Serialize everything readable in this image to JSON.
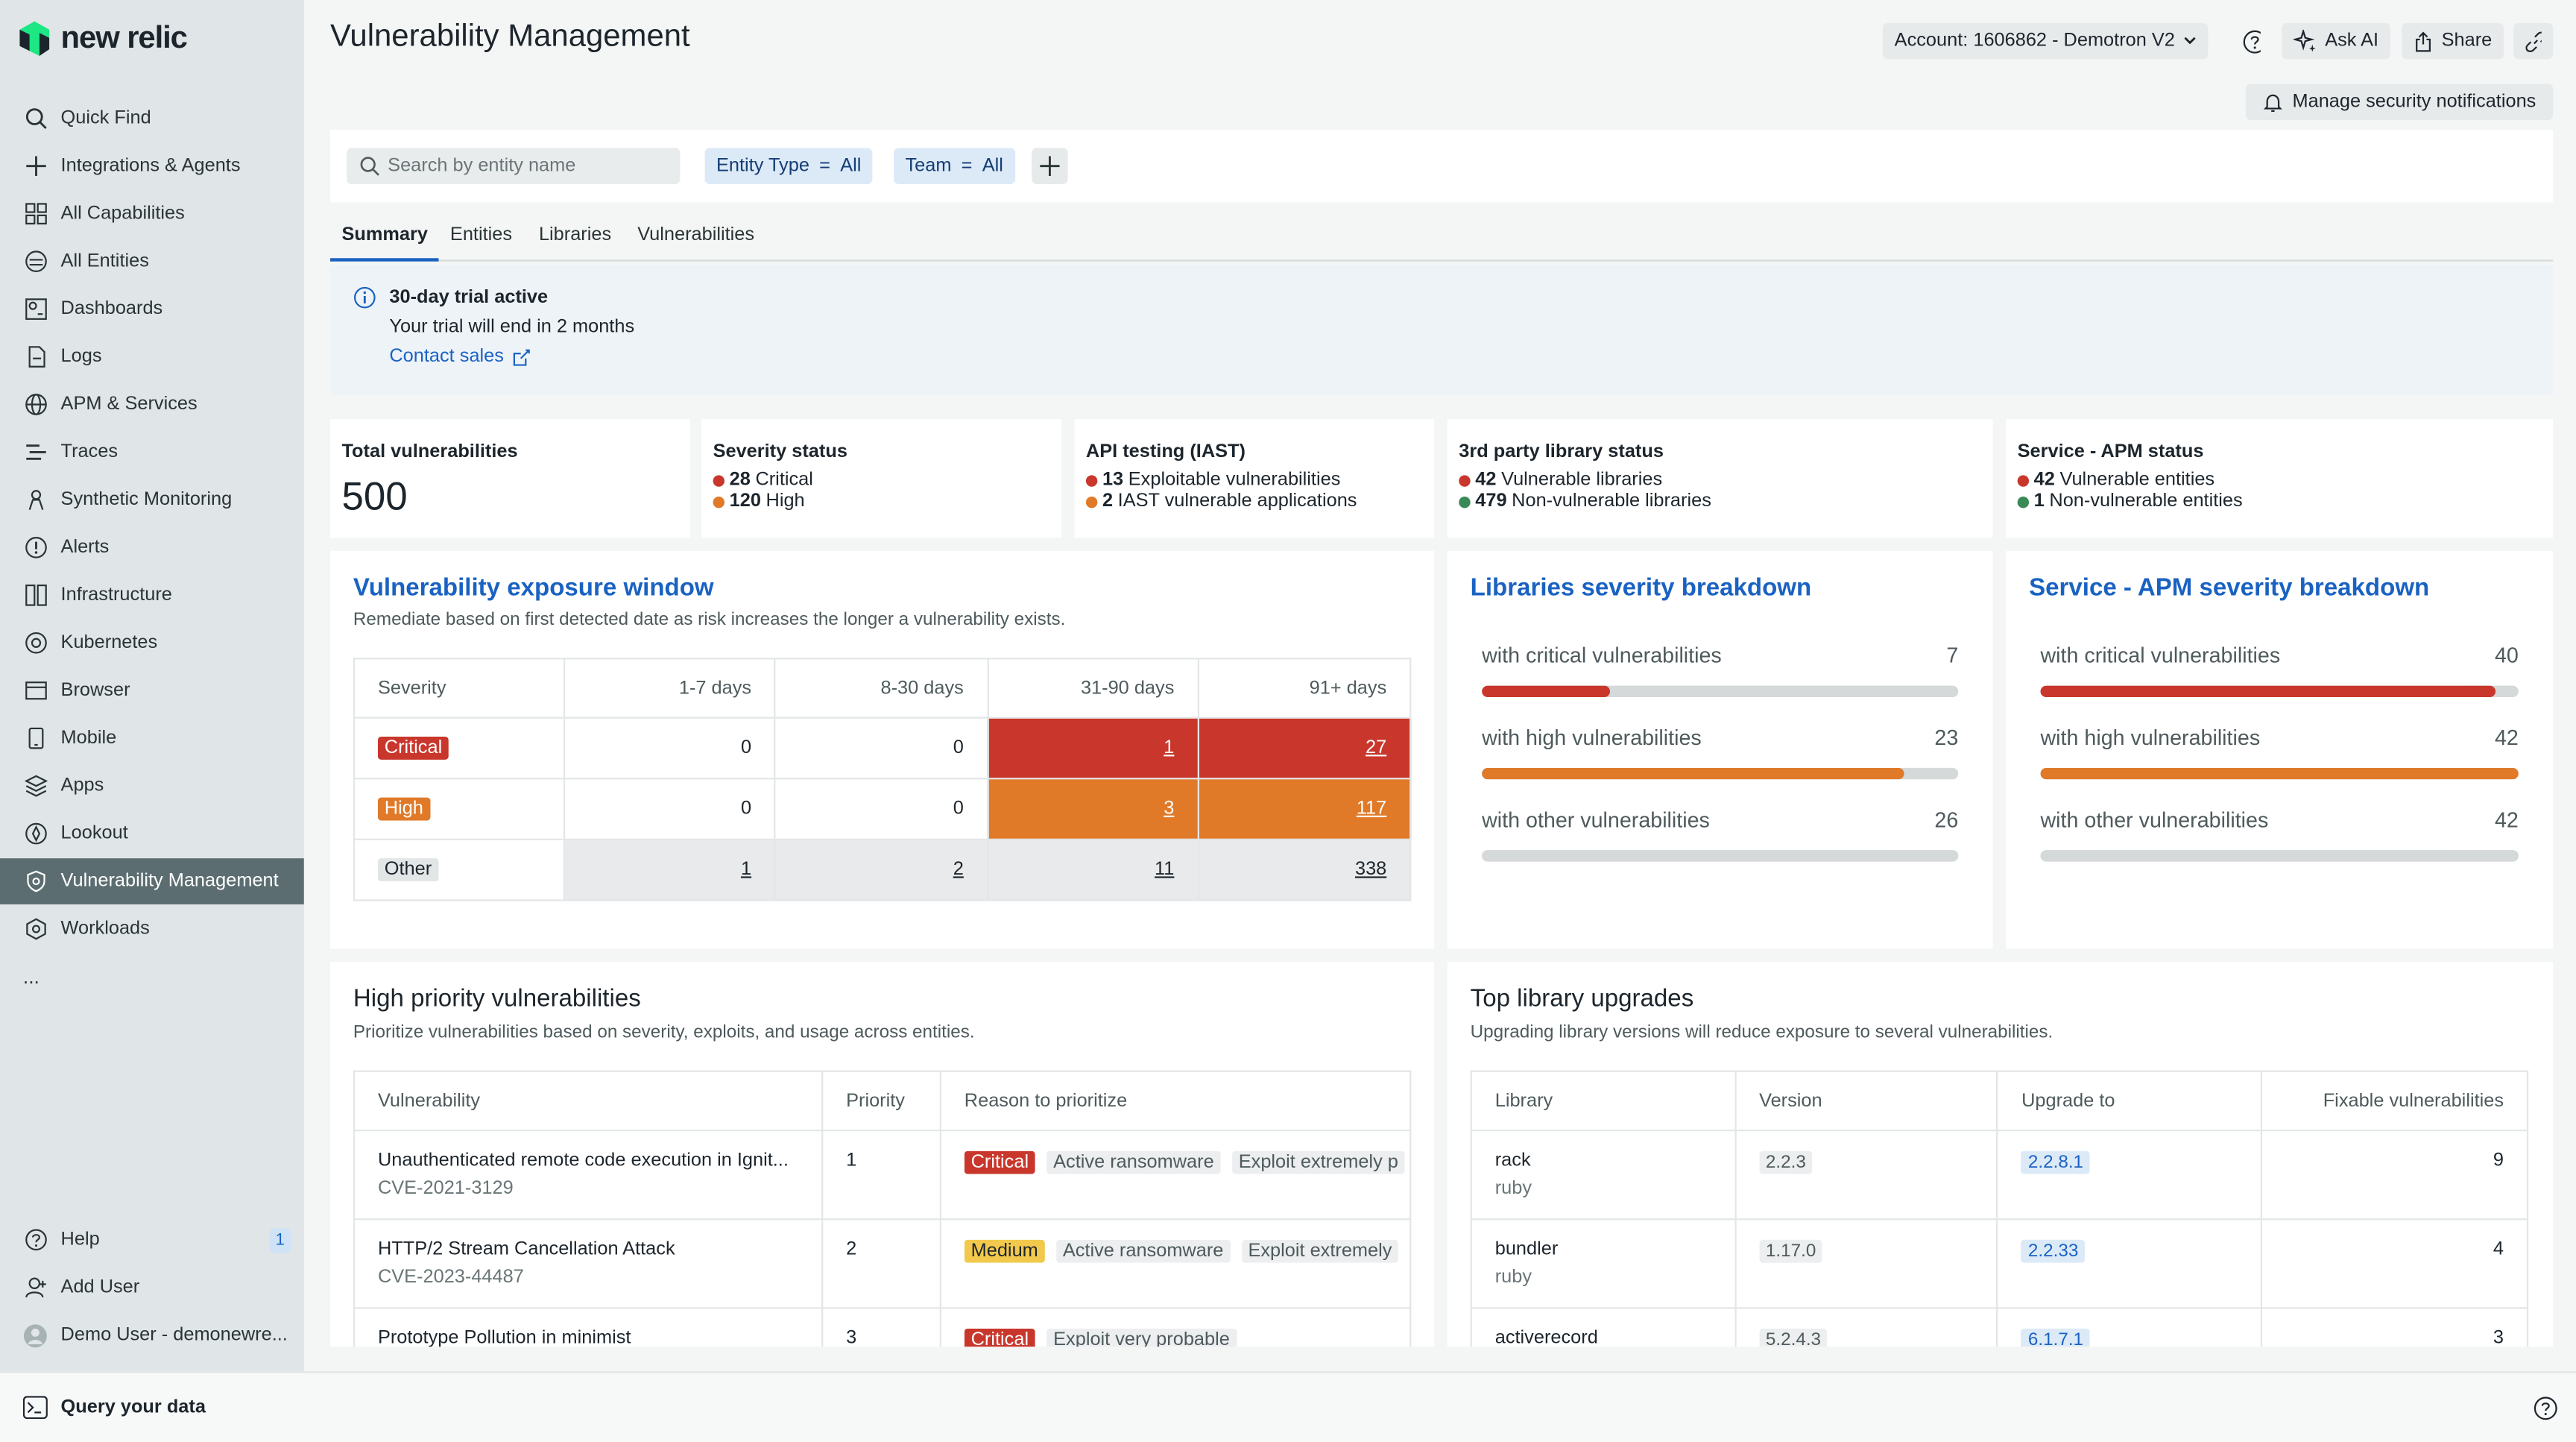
{
  "brand": {
    "name": "new relic"
  },
  "sidebar": {
    "items": [
      {
        "label": "Quick Find"
      },
      {
        "label": "Integrations & Agents"
      },
      {
        "label": "All Capabilities"
      },
      {
        "label": "All Entities"
      },
      {
        "label": "Dashboards"
      },
      {
        "label": "Logs"
      },
      {
        "label": "APM & Services"
      },
      {
        "label": "Traces"
      },
      {
        "label": "Synthetic Monitoring"
      },
      {
        "label": "Alerts"
      },
      {
        "label": "Infrastructure"
      },
      {
        "label": "Kubernetes"
      },
      {
        "label": "Browser"
      },
      {
        "label": "Mobile"
      },
      {
        "label": "Apps"
      },
      {
        "label": "Lookout"
      },
      {
        "label": "Vulnerability Management"
      },
      {
        "label": "Workloads"
      }
    ],
    "more": "...",
    "bottom": [
      {
        "label": "Help",
        "badge": "1"
      },
      {
        "label": "Add User"
      },
      {
        "label": "Demo User - demonewre..."
      }
    ]
  },
  "bottombar": {
    "label": "Query your data"
  },
  "header": {
    "title": "Vulnerability Management",
    "account": "Account: 1606862 - Demotron V2",
    "ask_ai": "Ask AI",
    "share": "Share",
    "manage_notifications": "Manage security notifications"
  },
  "filters": {
    "search_placeholder": "Search by entity name",
    "chips": [
      {
        "key": "Entity Type",
        "op": "=",
        "value": "All"
      },
      {
        "key": "Team",
        "op": "=",
        "value": "All"
      }
    ]
  },
  "tabs": [
    "Summary",
    "Entities",
    "Libraries",
    "Vulnerabilities"
  ],
  "banner": {
    "title": "30-day trial active",
    "text": "Your trial will end in 2 months",
    "link": "Contact sales"
  },
  "stats": {
    "total": {
      "title": "Total vulnerabilities",
      "value": "500"
    },
    "severity": {
      "title": "Severity status",
      "lines": [
        {
          "num": "28",
          "text": "Critical"
        },
        {
          "num": "120",
          "text": "High"
        }
      ]
    },
    "iast": {
      "title": "API testing (IAST)",
      "lines": [
        {
          "num": "13",
          "text": "Exploitable vulnerabilities"
        },
        {
          "num": "2",
          "text": "IAST vulnerable applications"
        }
      ]
    },
    "library": {
      "title": "3rd party library status",
      "lines": [
        {
          "num": "42",
          "text": "Vulnerable libraries"
        },
        {
          "num": "479",
          "text": "Non-vulnerable libraries"
        }
      ]
    },
    "apm": {
      "title": "Service - APM status",
      "lines": [
        {
          "num": "42",
          "text": "Vulnerable entities"
        },
        {
          "num": "1",
          "text": "Non-vulnerable entities"
        }
      ]
    }
  },
  "exposure": {
    "title": "Vulnerability exposure window",
    "subtitle": "Remediate based on first detected date as risk increases the longer a vulnerability exists.",
    "columns": [
      "Severity",
      "1-7 days",
      "8-30 days",
      "31-90 days",
      "91+ days"
    ],
    "rows": [
      {
        "severity": "Critical",
        "values": [
          "0",
          "0",
          "1",
          "27"
        ]
      },
      {
        "severity": "High",
        "values": [
          "0",
          "0",
          "3",
          "117"
        ]
      },
      {
        "severity": "Other",
        "values": [
          "1",
          "2",
          "11",
          "338"
        ]
      }
    ]
  },
  "libraries_breakdown": {
    "title": "Libraries severity breakdown",
    "rows": [
      {
        "label": "with critical vulnerabilities",
        "value": "7",
        "fraction": 0.27
      },
      {
        "label": "with high vulnerabilities",
        "value": "23",
        "fraction": 0.885
      },
      {
        "label": "with other vulnerabilities",
        "value": "26",
        "fraction": 1.0
      }
    ]
  },
  "apm_breakdown": {
    "title": "Service - APM severity breakdown",
    "rows": [
      {
        "label": "with critical vulnerabilities",
        "value": "40",
        "fraction": 0.952
      },
      {
        "label": "with high vulnerabilities",
        "value": "42",
        "fraction": 1.0
      },
      {
        "label": "with other vulnerabilities",
        "value": "42",
        "fraction": 1.0
      }
    ]
  },
  "high_priority": {
    "title": "High priority vulnerabilities",
    "subtitle": "Prioritize vulnerabilities based on severity, exploits, and usage across entities.",
    "columns": [
      "Vulnerability",
      "Priority",
      "Reason to prioritize"
    ],
    "rows": [
      {
        "name": "Unauthenticated remote code execution in Ignit...",
        "cve": "CVE-2021-3129",
        "priority": "1",
        "severity": "Critical",
        "tags": [
          "Active ransomware",
          "Exploit extremely p"
        ]
      },
      {
        "name": "HTTP/2 Stream Cancellation Attack",
        "cve": "CVE-2023-44487",
        "priority": "2",
        "severity": "Medium",
        "tags": [
          "Active ransomware",
          "Exploit extremely"
        ]
      },
      {
        "name": "Prototype Pollution in minimist",
        "cve": "",
        "priority": "3",
        "severity": "Critical",
        "tags": [
          "Exploit very probable"
        ]
      }
    ]
  },
  "upgrades": {
    "title": "Top library upgrades",
    "subtitle": "Upgrading library versions will reduce exposure to several vulnerabilities.",
    "columns": [
      "Library",
      "Version",
      "Upgrade to",
      "Fixable vulnerabilities"
    ],
    "rows": [
      {
        "library": "rack",
        "lang": "ruby",
        "version": "2.2.3",
        "upgrade": "2.2.8.1",
        "fixable": "9"
      },
      {
        "library": "bundler",
        "lang": "ruby",
        "version": "1.17.0",
        "upgrade": "2.2.33",
        "fixable": "4"
      },
      {
        "library": "activerecord",
        "lang": "",
        "version": "5.2.4.3",
        "upgrade": "6.1.7.1",
        "fixable": "3"
      }
    ]
  },
  "colors": {
    "critical": "#c9372c",
    "high": "#e07a29",
    "other": "#d5d9da",
    "link": "#1a62c2",
    "sidebar": "#e0e5e7",
    "active_nav": "#5b6d70"
  }
}
